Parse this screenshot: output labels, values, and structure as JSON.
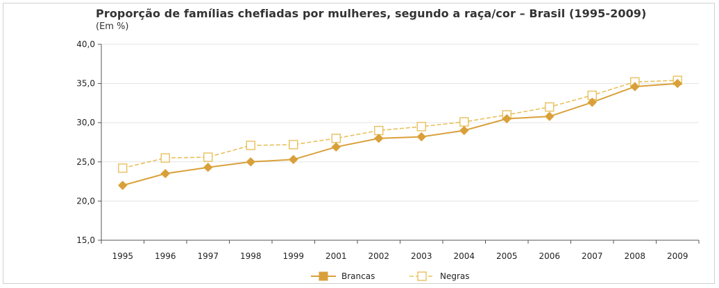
{
  "chart_data": {
    "type": "line",
    "title": "Proporção de famílias chefiadas por mulheres, segundo a raça/cor – Brasil (1995-2009)",
    "subtitle": "(Em %)",
    "xlabel": "",
    "ylabel": "",
    "categories": [
      "1995",
      "1996",
      "1997",
      "1998",
      "1999",
      "2001",
      "2002",
      "2003",
      "2004",
      "2005",
      "2006",
      "2007",
      "2008",
      "2009"
    ],
    "ylim": [
      15,
      40
    ],
    "yticks": [
      "15,0",
      "20,0",
      "25,0",
      "30,0",
      "35,0",
      "40,0"
    ],
    "ytick_values": [
      15,
      20,
      25,
      30,
      35,
      40
    ],
    "grid": true,
    "legend_position": "bottom-center",
    "series": [
      {
        "name": "Brancas",
        "color": "#d9a03a",
        "marker": "filled-diamond",
        "values": [
          22.0,
          23.5,
          24.3,
          25.0,
          25.3,
          26.9,
          28.0,
          28.2,
          29.0,
          30.5,
          30.8,
          32.6,
          34.6,
          35.0
        ]
      },
      {
        "name": "Negras",
        "color": "#e8c05a",
        "marker": "open-square",
        "values": [
          24.2,
          25.5,
          25.6,
          27.1,
          27.2,
          28.0,
          29.0,
          29.5,
          30.1,
          31.0,
          32.0,
          33.5,
          35.2,
          35.4
        ]
      }
    ]
  }
}
